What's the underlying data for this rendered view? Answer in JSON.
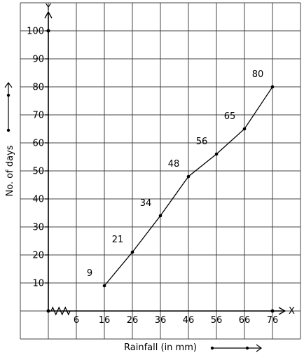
{
  "chart_data": {
    "type": "line",
    "title": "",
    "xlabel": "Rainfall (in mm)",
    "ylabel": "No. of days",
    "x_axis_letter": "X",
    "y_axis_letter": "Y",
    "x_ticks": [
      "6",
      "16",
      "26",
      "36",
      "46",
      "56",
      "66",
      "76"
    ],
    "y_ticks": [
      "10",
      "20",
      "30",
      "40",
      "50",
      "60",
      "70",
      "80",
      "90",
      "100"
    ],
    "xlim": [
      -4,
      76
    ],
    "ylim": [
      0,
      100
    ],
    "axis_break": "zigzag on x-axis between origin and first tick",
    "grid": true,
    "series": [
      {
        "x": [
          16,
          26,
          36,
          46,
          56,
          66,
          76
        ],
        "y": [
          9,
          21,
          34,
          48,
          56,
          65,
          80
        ],
        "labels": [
          "9",
          "21",
          "34",
          "48",
          "56",
          "65",
          "80"
        ],
        "color": "#000000"
      }
    ]
  }
}
